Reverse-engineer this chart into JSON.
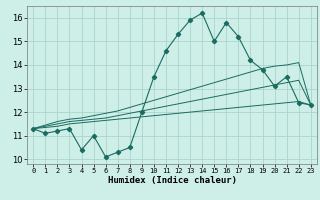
{
  "title": "",
  "xlabel": "Humidex (Indice chaleur)",
  "ylabel": "",
  "background_color": "#ceeee8",
  "grid_color": "#aad4cc",
  "line_color": "#1a6b60",
  "x_data": [
    0,
    1,
    2,
    3,
    4,
    5,
    6,
    7,
    8,
    9,
    10,
    11,
    12,
    13,
    14,
    15,
    16,
    17,
    18,
    19,
    20,
    21,
    22,
    23
  ],
  "main_y": [
    11.3,
    11.1,
    11.2,
    11.3,
    10.4,
    11.0,
    10.1,
    10.3,
    10.5,
    12.0,
    13.5,
    14.6,
    15.3,
    15.9,
    16.2,
    15.0,
    15.8,
    15.2,
    14.2,
    13.8,
    13.1,
    13.5,
    12.4,
    12.3
  ],
  "line1_y": [
    11.3,
    11.35,
    11.4,
    11.5,
    11.55,
    11.6,
    11.65,
    11.7,
    11.75,
    11.8,
    11.85,
    11.9,
    11.95,
    12.0,
    12.05,
    12.1,
    12.15,
    12.2,
    12.25,
    12.3,
    12.35,
    12.4,
    12.45,
    12.3
  ],
  "line2_y": [
    11.3,
    11.4,
    11.5,
    11.6,
    11.65,
    11.7,
    11.75,
    11.85,
    11.95,
    12.05,
    12.15,
    12.25,
    12.35,
    12.45,
    12.55,
    12.65,
    12.75,
    12.85,
    12.95,
    13.05,
    13.15,
    13.25,
    13.35,
    12.3
  ],
  "line3_y": [
    11.3,
    11.45,
    11.6,
    11.7,
    11.75,
    11.85,
    11.95,
    12.05,
    12.2,
    12.35,
    12.5,
    12.65,
    12.8,
    12.95,
    13.1,
    13.25,
    13.4,
    13.55,
    13.7,
    13.85,
    13.95,
    14.0,
    14.1,
    12.3
  ],
  "ylim": [
    9.8,
    16.5
  ],
  "xlim": [
    -0.5,
    23.5
  ],
  "yticks": [
    10,
    11,
    12,
    13,
    14,
    15,
    16
  ],
  "xticks": [
    0,
    1,
    2,
    3,
    4,
    5,
    6,
    7,
    8,
    9,
    10,
    11,
    12,
    13,
    14,
    15,
    16,
    17,
    18,
    19,
    20,
    21,
    22,
    23
  ]
}
